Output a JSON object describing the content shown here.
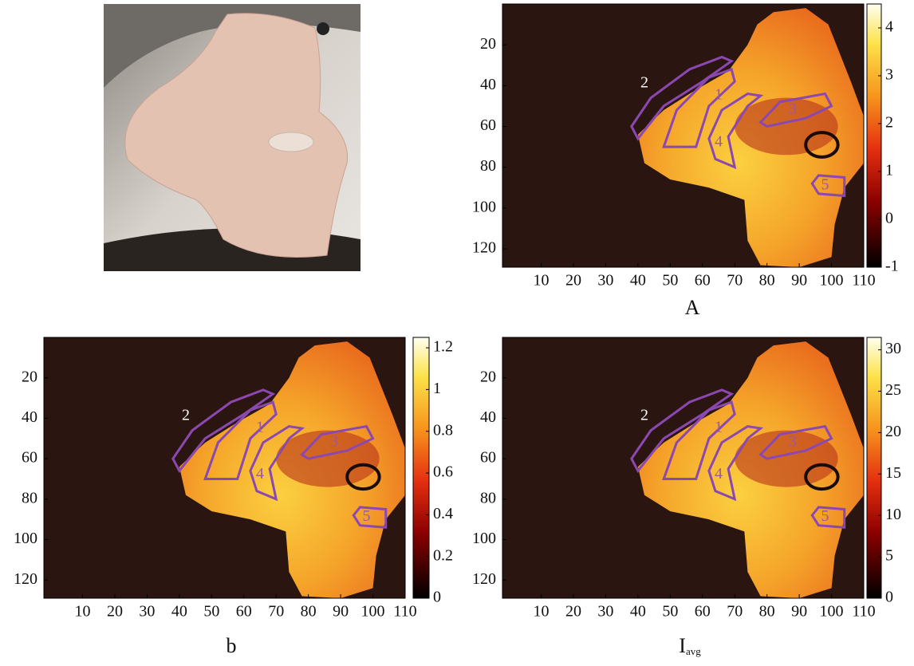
{
  "chart_data": [
    {
      "type": "heatmap",
      "title": "A",
      "xlim": [
        -2,
        110
      ],
      "ylim": [
        129,
        0
      ],
      "xticks": [
        10,
        20,
        30,
        40,
        50,
        60,
        70,
        80,
        90,
        100,
        110
      ],
      "yticks": [
        20,
        40,
        60,
        80,
        100,
        120
      ],
      "clim": [
        -1,
        4.5
      ],
      "cticks": [
        -1,
        0,
        1,
        2,
        3,
        4
      ],
      "regions": [
        {
          "label": "1",
          "x": 65,
          "y": 45
        },
        {
          "label": "2",
          "x": 42,
          "y": 39
        },
        {
          "label": "3",
          "x": 88,
          "y": 52
        },
        {
          "label": "4",
          "x": 65,
          "y": 68
        },
        {
          "label": "5",
          "x": 98,
          "y": 89
        }
      ]
    },
    {
      "type": "heatmap",
      "title": "b",
      "xlim": [
        -2,
        110
      ],
      "ylim": [
        129,
        0
      ],
      "xticks": [
        10,
        20,
        30,
        40,
        50,
        60,
        70,
        80,
        90,
        100,
        110
      ],
      "yticks": [
        20,
        40,
        60,
        80,
        100,
        120
      ],
      "clim": [
        0,
        1.25
      ],
      "cticks": [
        0,
        0.2,
        0.4,
        0.6,
        0.8,
        1,
        1.2
      ],
      "regions": [
        {
          "label": "1",
          "x": 65,
          "y": 45
        },
        {
          "label": "2",
          "x": 42,
          "y": 39
        },
        {
          "label": "3",
          "x": 88,
          "y": 52
        },
        {
          "label": "4",
          "x": 65,
          "y": 68
        },
        {
          "label": "5",
          "x": 98,
          "y": 89
        }
      ]
    },
    {
      "type": "heatmap",
      "title": "I",
      "title_subscript": "avg",
      "xlim": [
        -2,
        110
      ],
      "ylim": [
        129,
        0
      ],
      "xticks": [
        10,
        20,
        30,
        40,
        50,
        60,
        70,
        80,
        90,
        100,
        110
      ],
      "yticks": [
        20,
        40,
        60,
        80,
        100,
        120
      ],
      "clim": [
        0,
        31.5
      ],
      "cticks": [
        0,
        5,
        10,
        15,
        20,
        25,
        30
      ],
      "regions": [
        {
          "label": "1",
          "x": 65,
          "y": 45
        },
        {
          "label": "2",
          "x": 42,
          "y": 39
        },
        {
          "label": "3",
          "x": 88,
          "y": 52
        },
        {
          "label": "4",
          "x": 65,
          "y": 68
        },
        {
          "label": "5",
          "x": 98,
          "y": 89
        }
      ]
    }
  ]
}
